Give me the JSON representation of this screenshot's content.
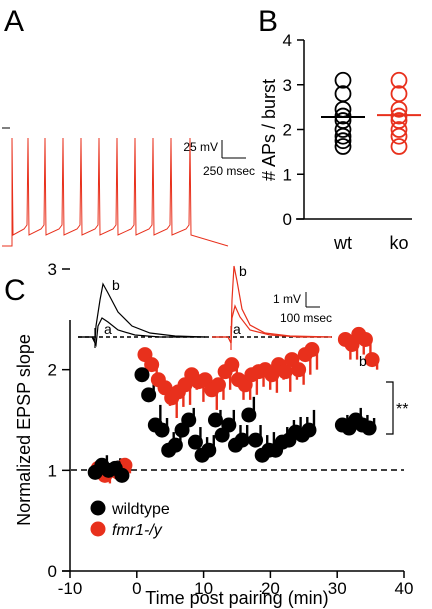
{
  "panels": {
    "A": {
      "label": "A",
      "scalebar": {
        "voltage": "25 mV",
        "time": "250 msec"
      },
      "traces": [
        {
          "name": "wt",
          "color": "#000000"
        },
        {
          "name": "ko",
          "color": "#e8301c"
        }
      ]
    },
    "B": {
      "label": "B"
    },
    "C": {
      "label": "C",
      "inset_scalebar": {
        "voltage": "1 mV",
        "time": "100 msec"
      },
      "inset_labels": {
        "a": "a",
        "b": "b"
      },
      "point_labels": {
        "a": "a",
        "b": "b"
      },
      "significance": "**",
      "legend": [
        {
          "label": "wildtype",
          "color": "#000000"
        },
        {
          "label": "fmr1-/y",
          "color": "#e8301c",
          "italic": true
        }
      ]
    }
  },
  "chart_data": [
    {
      "type": "scatter",
      "panel": "B",
      "ylabel": "# APs / burst",
      "ylim": [
        0,
        4
      ],
      "yticks": [
        "0",
        "1",
        "2",
        "3",
        "4"
      ],
      "categories": [
        "wt",
        "ko"
      ],
      "marker": "open-circle",
      "series": [
        {
          "name": "wt",
          "color": "#000000",
          "values": [
            3.1,
            2.8,
            2.45,
            2.3,
            2.2,
            2.0,
            1.85,
            1.75,
            1.62
          ],
          "mean": 2.28
        },
        {
          "name": "ko",
          "color": "#e8301c",
          "values": [
            3.1,
            2.8,
            2.45,
            2.3,
            2.2,
            2.0,
            1.85,
            1.62
          ],
          "mean": 2.32
        }
      ]
    },
    {
      "type": "scatter",
      "panel": "C",
      "xlabel": "Time post pairing (min)",
      "ylabel": "Normalized EPSP slope",
      "xlim": [
        -10,
        40
      ],
      "ylim": [
        0,
        3
      ],
      "xticks": [
        "-10",
        "0",
        "10",
        "20",
        "30",
        "40"
      ],
      "yticks": [
        "0",
        "1",
        "2",
        "3"
      ],
      "reference_line": 1,
      "series": [
        {
          "name": "wildtype",
          "color": "#000000",
          "x": [
            -6,
            -5,
            -4,
            -3,
            -2,
            1,
            2,
            3,
            4,
            5,
            6,
            7,
            8,
            9,
            10,
            11,
            12,
            13,
            14,
            15,
            16,
            17,
            18,
            19,
            20,
            21,
            22,
            23,
            24,
            25,
            26,
            31,
            32,
            33,
            34,
            35
          ],
          "y": [
            0.98,
            1.05,
            1.0,
            1.02,
            0.95,
            1.95,
            1.75,
            1.45,
            1.4,
            1.2,
            1.25,
            1.4,
            1.5,
            1.28,
            1.15,
            1.2,
            1.5,
            1.35,
            1.45,
            1.25,
            1.3,
            1.55,
            1.3,
            1.15,
            1.2,
            1.2,
            1.28,
            1.3,
            1.38,
            1.35,
            1.4,
            1.45,
            1.42,
            1.5,
            1.45,
            1.42
          ],
          "err": [
            0.08,
            0.1,
            0.08,
            0.1,
            0.08,
            0.2,
            0.15,
            0.2,
            0.12,
            0.18,
            0.2,
            0.15,
            0.12,
            0.15,
            0.18,
            0.15,
            0.1,
            0.12,
            0.15,
            0.2,
            0.15,
            0.18,
            0.15,
            0.2,
            0.18,
            0.15,
            0.15,
            0.2,
            0.15,
            0.18,
            0.2,
            0.1,
            0.1,
            0.12,
            0.1,
            0.1
          ]
        },
        {
          "name": "fmr1-/y",
          "color": "#e8301c",
          "x": [
            -6,
            -5,
            -4,
            -3,
            -2,
            1,
            2,
            3,
            4,
            5,
            6,
            7,
            8,
            9,
            10,
            11,
            12,
            13,
            14,
            15,
            16,
            17,
            18,
            19,
            20,
            21,
            22,
            23,
            24,
            25,
            26,
            31,
            32,
            33,
            34,
            35
          ],
          "y": [
            1.02,
            0.95,
            1.0,
            0.98,
            1.05,
            2.15,
            2.05,
            1.9,
            1.82,
            1.72,
            1.78,
            1.85,
            1.95,
            1.88,
            1.9,
            1.8,
            1.85,
            1.98,
            2.05,
            1.9,
            1.85,
            1.95,
            1.98,
            2.0,
            1.95,
            2.05,
            1.98,
            2.1,
            2.0,
            2.15,
            2.2,
            2.3,
            2.25,
            2.35,
            2.3,
            2.1
          ],
          "err": [
            0.1,
            0.08,
            0.08,
            0.1,
            0.08,
            0.15,
            0.2,
            0.15,
            0.18,
            0.2,
            0.15,
            0.2,
            0.15,
            0.2,
            0.15,
            0.2,
            0.15,
            0.18,
            0.2,
            0.2,
            0.15,
            0.2,
            0.15,
            0.2,
            0.18,
            0.15,
            0.2,
            0.2,
            0.15,
            0.2,
            0.2,
            0.2,
            0.15,
            0.2,
            0.25,
            0.1
          ]
        }
      ]
    }
  ]
}
